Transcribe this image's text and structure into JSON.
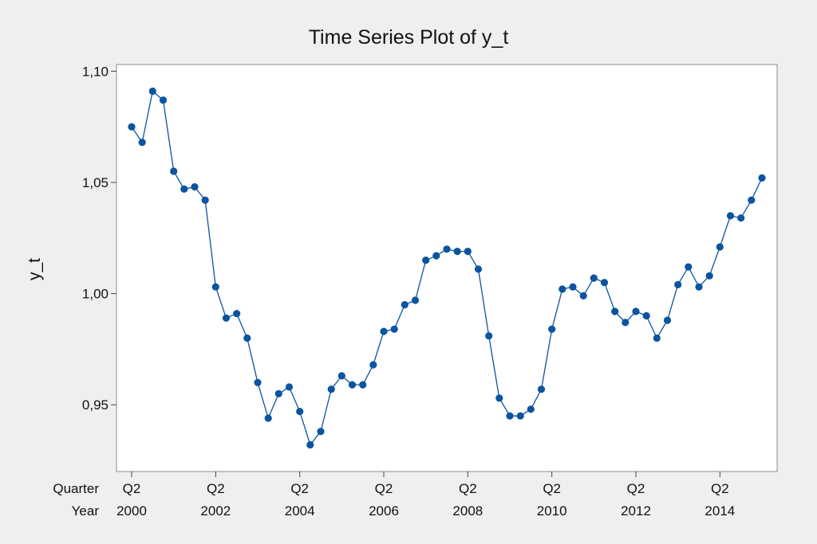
{
  "chart_data": {
    "type": "line",
    "title": "Time Series Plot of y_t",
    "ylabel": "y_t",
    "xlabel": "",
    "ylim": [
      0.92,
      1.103
    ],
    "y_ticks": [
      {
        "value": 1.1,
        "label": "1,10"
      },
      {
        "value": 1.05,
        "label": "1,05"
      },
      {
        "value": 1.0,
        "label": "1,00"
      },
      {
        "value": 0.95,
        "label": "0,95"
      }
    ],
    "x_axis_row_labels": [
      "Quarter",
      "Year"
    ],
    "x_ticks": [
      {
        "index": 0,
        "quarter": "Q2",
        "year": "2000"
      },
      {
        "index": 8,
        "quarter": "Q2",
        "year": "2002"
      },
      {
        "index": 16,
        "quarter": "Q2",
        "year": "2004"
      },
      {
        "index": 24,
        "quarter": "Q2",
        "year": "2006"
      },
      {
        "index": 32,
        "quarter": "Q2",
        "year": "2008"
      },
      {
        "index": 40,
        "quarter": "Q2",
        "year": "2010"
      },
      {
        "index": 48,
        "quarter": "Q2",
        "year": "2012"
      },
      {
        "index": 56,
        "quarter": "Q2",
        "year": "2014"
      }
    ],
    "grid": false,
    "legend": "none",
    "series": [
      {
        "color": "#0b54a0",
        "values": [
          1.075,
          1.068,
          1.091,
          1.087,
          1.055,
          1.047,
          1.048,
          1.042,
          1.003,
          0.989,
          0.991,
          0.98,
          0.96,
          0.944,
          0.955,
          0.958,
          0.947,
          0.932,
          0.938,
          0.957,
          0.963,
          0.959,
          0.959,
          0.968,
          0.983,
          0.984,
          0.995,
          0.997,
          1.015,
          1.017,
          1.02,
          1.019,
          1.019,
          1.011,
          0.981,
          0.953,
          0.945,
          0.945,
          0.948,
          0.957,
          0.984,
          1.002,
          1.003,
          0.999,
          1.007,
          1.005,
          0.992,
          0.987,
          0.992,
          0.99,
          0.98,
          0.988,
          1.004,
          1.012,
          1.003,
          1.008,
          1.021,
          1.035,
          1.034,
          1.042,
          1.052
        ]
      }
    ]
  }
}
